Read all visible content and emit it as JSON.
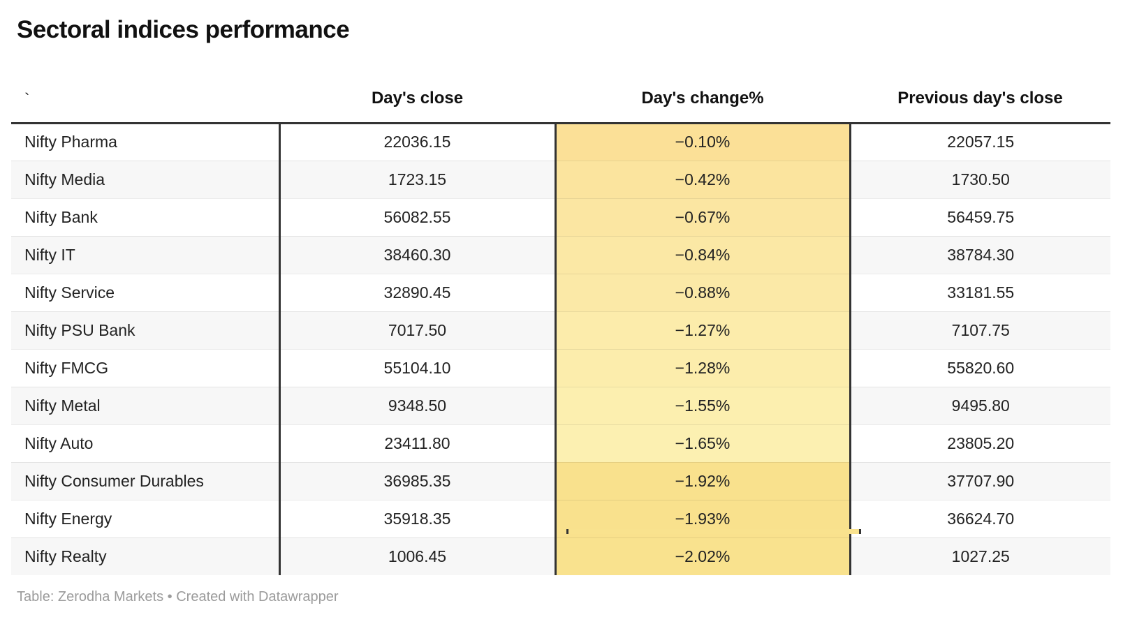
{
  "title": "Sectoral indices performance",
  "columns": {
    "index_header": "`",
    "close_header": "Day's close",
    "change_header": "Day's change%",
    "prev_close_header": "Previous day's close"
  },
  "rows": [
    {
      "name": "Nifty Pharma",
      "close": "22036.15",
      "change": "−0.10%",
      "change_bg": "#FBE097",
      "prev_close": "22057.15"
    },
    {
      "name": "Nifty Media",
      "close": "1723.15",
      "change": "−0.42%",
      "change_bg": "#FBE49E",
      "prev_close": "1730.50"
    },
    {
      "name": "Nifty Bank",
      "close": "56082.55",
      "change": "−0.67%",
      "change_bg": "#FBE6A2",
      "prev_close": "56459.75"
    },
    {
      "name": "Nifty IT",
      "close": "38460.30",
      "change": "−0.84%",
      "change_bg": "#FBE8A5",
      "prev_close": "38784.30"
    },
    {
      "name": "Nifty Service",
      "close": "32890.45",
      "change": "−0.88%",
      "change_bg": "#FBE9A7",
      "prev_close": "33181.55"
    },
    {
      "name": "Nifty PSU Bank",
      "close": "7017.50",
      "change": "−1.27%",
      "change_bg": "#FCECAB",
      "prev_close": "7107.75"
    },
    {
      "name": "Nifty FMCG",
      "close": "55104.10",
      "change": "−1.28%",
      "change_bg": "#FCEDAC",
      "prev_close": "55820.60"
    },
    {
      "name": "Nifty Metal",
      "close": "9348.50",
      "change": "−1.55%",
      "change_bg": "#FCEFAF",
      "prev_close": "9495.80"
    },
    {
      "name": "Nifty Auto",
      "close": "23411.80",
      "change": "−1.65%",
      "change_bg": "#FCF0B1",
      "prev_close": "23805.20"
    },
    {
      "name": "Nifty Consumer Durables",
      "close": "36985.35",
      "change": "−1.92%",
      "change_bg": "#F9E18D",
      "prev_close": "37707.90"
    },
    {
      "name": "Nifty Energy",
      "close": "35918.35",
      "change": "−1.93%",
      "change_bg": "#F9E18D",
      "prev_close": "36624.70"
    },
    {
      "name": "Nifty Realty",
      "close": "1006.45",
      "change": "−2.02%",
      "change_bg": "#F9E28E",
      "prev_close": "1027.25"
    }
  ],
  "footer": {
    "text": "Table: Zerodha Markets • Created with Datawrapper"
  },
  "colors": {
    "rule_dark": "#333333",
    "row_alt_bg": "#f7f7f7",
    "row_separator": "#e8e8e8",
    "footer_text": "#9b9b9b"
  },
  "chart_data": {
    "type": "table",
    "title": "Sectoral indices performance",
    "columns": [
      "`",
      "Day's close",
      "Day's change%",
      "Previous day's close"
    ],
    "categories": [
      "Nifty Pharma",
      "Nifty Media",
      "Nifty Bank",
      "Nifty IT",
      "Nifty Service",
      "Nifty PSU Bank",
      "Nifty FMCG",
      "Nifty Metal",
      "Nifty Auto",
      "Nifty Consumer Durables",
      "Nifty Energy",
      "Nifty Realty"
    ],
    "series": [
      {
        "name": "Day's close",
        "values": [
          22036.15,
          1723.15,
          56082.55,
          38460.3,
          32890.45,
          7017.5,
          55104.1,
          9348.5,
          23411.8,
          36985.35,
          35918.35,
          1006.45
        ]
      },
      {
        "name": "Day's change%",
        "values": [
          -0.1,
          -0.42,
          -0.67,
          -0.84,
          -0.88,
          -1.27,
          -1.28,
          -1.55,
          -1.65,
          -1.92,
          -1.93,
          -2.02
        ]
      },
      {
        "name": "Previous day's close",
        "values": [
          22057.15,
          1730.5,
          56459.75,
          38784.3,
          33181.55,
          7107.75,
          55820.6,
          9495.8,
          23805.2,
          37707.9,
          36624.7,
          1027.25
        ]
      }
    ],
    "layout_hints": {
      "heatmap_column": "Day's change%",
      "heatmap_palette": "yellow-gold",
      "source": "Table: Zerodha Markets • Created with Datawrapper"
    }
  }
}
